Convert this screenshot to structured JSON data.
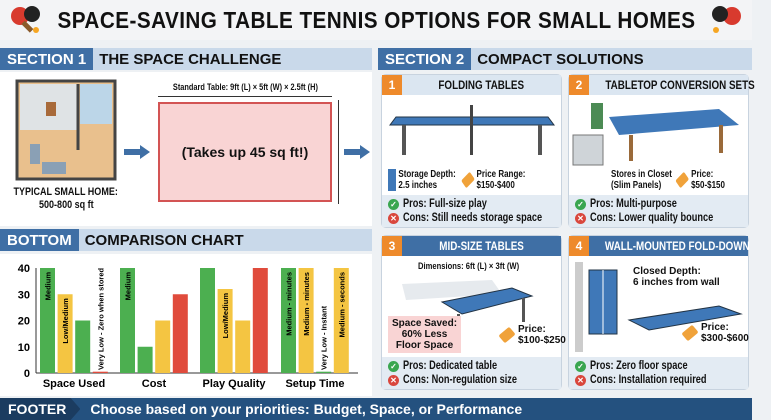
{
  "title": "SPACE-SAVING TABLE TENNIS OPTIONS FOR SMALL HOMES",
  "section1": {
    "tag": "SECTION 1",
    "title": "THE SPACE CHALLENGE",
    "home_label_1": "TYPICAL SMALL HOME:",
    "home_label_2": "500-800 sq ft",
    "table_dims": "Standard Table: 9ft (L) × 5ft (W) × 2.5ft (H)",
    "table_area": "(Takes up 45 sq ft!)"
  },
  "section2": {
    "tag": "SECTION 2",
    "title": "COMPACT SOLUTIONS",
    "cards": [
      {
        "num": "1",
        "title": "FOLDING TABLES",
        "info_a": [
          "Storage Depth:",
          "2.5 inches"
        ],
        "info_b": [
          "Price Range:",
          "$150-$400"
        ],
        "pros": "Pros: Full-size play",
        "cons": "Cons: Still needs storage space"
      },
      {
        "num": "2",
        "title": "TABLETOP CONVERSION SETS",
        "info_a": [
          "Stores in Closet",
          "(Slim Panels)"
        ],
        "info_b": [
          "Price:",
          "$50-$150"
        ],
        "pros": "Pros: Multi-purpose",
        "cons": "Cons: Lower quality bounce"
      },
      {
        "num": "3",
        "title": "MID-SIZE TABLES",
        "dims": "Dimensions: 6ft (L) × 3ft (W)",
        "saved": [
          "Space Saved:",
          "60% Less",
          "Floor Space"
        ],
        "info_b": [
          "Price:",
          "$100-$250"
        ],
        "pros": "Pros: Dedicated table",
        "cons": "Cons: Non-regulation size"
      },
      {
        "num": "4",
        "title": "WALL-MOUNTED FOLD-DOWN",
        "depth": [
          "Closed Depth:",
          "6 inches from wall"
        ],
        "info_b": [
          "Price:",
          "$300-$600"
        ],
        "pros": "Pros: Zero floor space",
        "cons": "Cons: Installation required"
      }
    ]
  },
  "bottom": {
    "tag": "BOTTOM",
    "title": "COMPARISON CHART"
  },
  "chart_data": {
    "type": "bar",
    "categories": [
      "Space Used",
      "Cost",
      "Play Quality",
      "Setup Time"
    ],
    "ylim": [
      0,
      40
    ],
    "yticks": [
      0,
      10,
      20,
      30,
      40
    ],
    "grid": false,
    "bars": [
      [
        {
          "value": 40,
          "color": "#4caf50",
          "label": "Medium"
        },
        {
          "value": 30,
          "color": "#f4c542",
          "label": "Low/Medium"
        },
        {
          "value": 20,
          "color": "#4caf50",
          "label": ""
        },
        {
          "value": 0.5,
          "color": "#e04b3c",
          "label": "Very Low - Zero when stored"
        }
      ],
      [
        {
          "value": 40,
          "color": "#4caf50",
          "label": "Medium"
        },
        {
          "value": 10,
          "color": "#4caf50",
          "label": ""
        },
        {
          "value": 20,
          "color": "#f4c542",
          "label": ""
        },
        {
          "value": 30,
          "color": "#e04b3c",
          "label": ""
        }
      ],
      [
        {
          "value": 40,
          "color": "#4caf50",
          "label": ""
        },
        {
          "value": 32,
          "color": "#f4c542",
          "label": "Low/Medium"
        },
        {
          "value": 20,
          "color": "#f4c542",
          "label": ""
        },
        {
          "value": 40,
          "color": "#e04b3c",
          "label": ""
        }
      ],
      [
        {
          "value": 40,
          "color": "#4caf50",
          "label": "Medium - minutes"
        },
        {
          "value": 40,
          "color": "#f4c542",
          "label": "Medium - minutes"
        },
        {
          "value": 0.5,
          "color": "#4caf50",
          "label": "Very Low - Instant"
        },
        {
          "value": 40,
          "color": "#f4c542",
          "label": "Medium - seconds"
        }
      ]
    ]
  },
  "footer": {
    "tag": "FOOTER",
    "text": "Choose based on your priorities: Budget, Space, or Performance"
  }
}
